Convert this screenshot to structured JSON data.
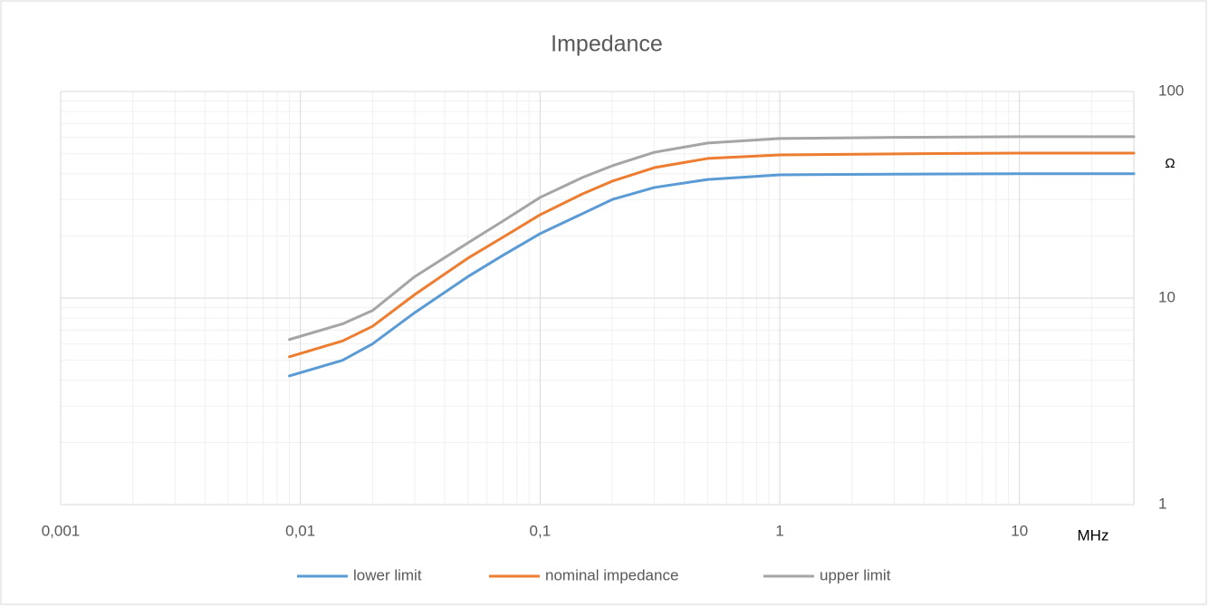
{
  "chart_data": {
    "type": "line",
    "title": "Impedance",
    "x_label": "MHz",
    "y_label": "Ω",
    "x": [
      0.009,
      0.015,
      0.02,
      0.03,
      0.05,
      0.07,
      0.1,
      0.15,
      0.2,
      0.3,
      0.5,
      1,
      3,
      10,
      30
    ],
    "series": [
      {
        "name": "lower limit",
        "color": "#5b9bd5",
        "values": [
          4.2,
          5.0,
          6.0,
          8.5,
          12.7,
          16.1,
          20.5,
          25.6,
          30,
          34.3,
          37.5,
          39.5,
          39.8,
          40,
          40
        ]
      },
      {
        "name": "nominal impedance",
        "color": "#ed7d31",
        "values": [
          5.2,
          6.2,
          7.3,
          10.4,
          15.6,
          19.7,
          25.3,
          31.9,
          36.8,
          42.8,
          47.4,
          49.3,
          49.9,
          50.3,
          50.3
        ]
      },
      {
        "name": "upper limit",
        "color": "#a5a5a5",
        "values": [
          6.3,
          7.5,
          8.7,
          12.7,
          18.5,
          23.6,
          30.7,
          38.3,
          43.7,
          50.8,
          56.3,
          59.2,
          60,
          60.4,
          60.4
        ]
      }
    ],
    "xlim": [
      0.001,
      30
    ],
    "ylim": [
      1,
      100
    ],
    "xticks": [
      {
        "value": 0.001,
        "label": "0,001"
      },
      {
        "value": 0.01,
        "label": "0,01"
      },
      {
        "value": 0.1,
        "label": "0,1"
      },
      1,
      10
    ],
    "yticks": [
      1,
      10,
      100
    ],
    "x_log": true,
    "y_log": true,
    "grid": true,
    "minor_grid": true,
    "legend": "bottom"
  }
}
